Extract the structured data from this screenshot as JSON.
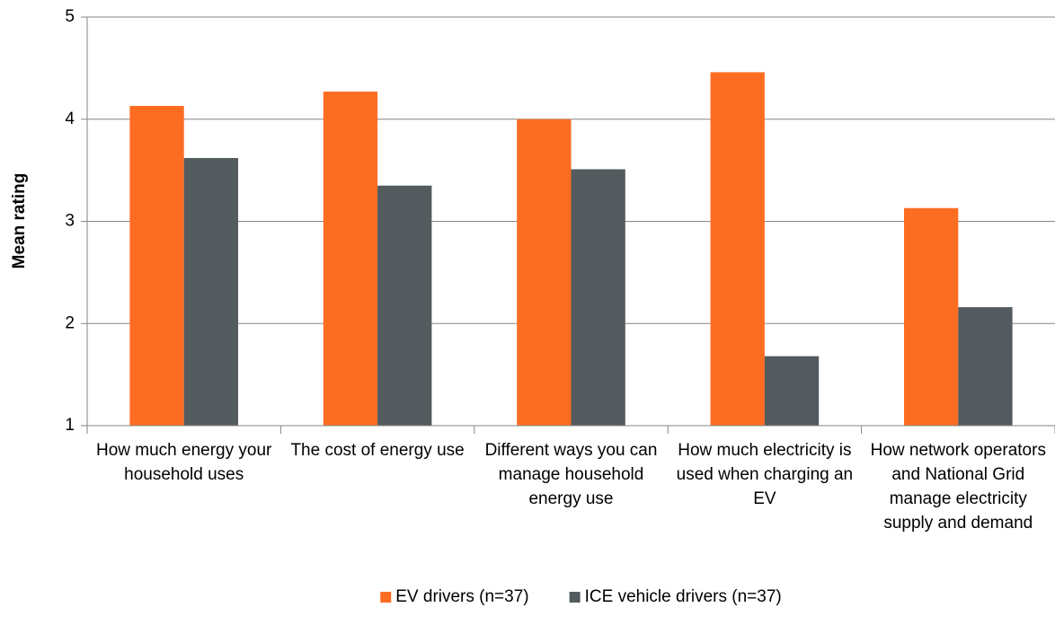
{
  "chart_data": {
    "type": "bar",
    "y_label": "Mean rating",
    "categories": [
      "How much energy your household uses",
      "The cost of energy use",
      "Different ways you can manage household energy use",
      "How much electricity is used when charging an EV",
      "How network operators and National Grid manage electricity supply and demand"
    ],
    "series": [
      {
        "name": "EV drivers (n=37)",
        "color": "#fd6d21",
        "values": [
          4.13,
          4.27,
          4.0,
          4.46,
          3.13
        ]
      },
      {
        "name": "ICE vehicle drivers (n=37)",
        "color": "#545b5e",
        "values": [
          3.62,
          3.35,
          3.51,
          1.68,
          2.16
        ]
      }
    ],
    "ylim": [
      1,
      5
    ],
    "yticks": [
      1,
      2,
      3,
      4,
      5
    ],
    "grid": true,
    "legend": "bottom"
  }
}
